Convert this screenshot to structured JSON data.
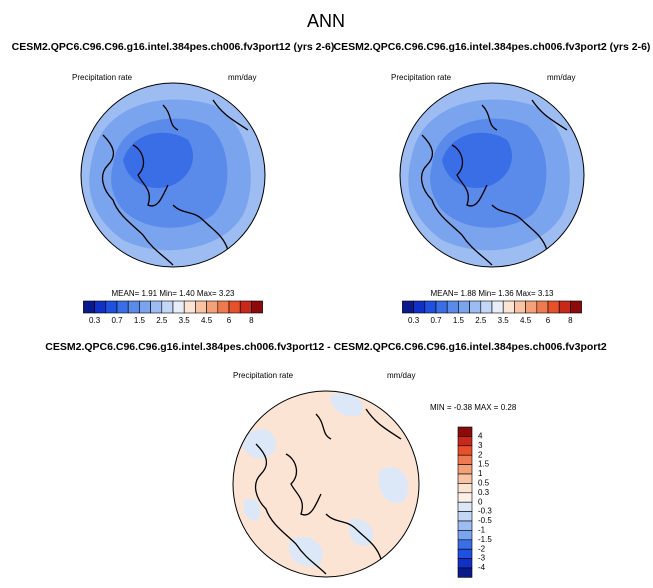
{
  "title": "ANN",
  "panels": [
    {
      "title": "CESM2.QPC6.C96.C96.g16.intel.384pes.ch006.fv3port12 (yrs 2-6)",
      "variable": "Precipitation rate",
      "units": "mm/day",
      "stats": "MEAN=  1.91  Min=  1.40  Max=  3.23",
      "levels": [
        0.3,
        0.7,
        1.5,
        2.5,
        3.5,
        4.5,
        6,
        8
      ],
      "colors": [
        "#0a1a8c",
        "#1030c8",
        "#2050e0",
        "#3a6ee6",
        "#5a8aea",
        "#7aa4ee",
        "#9cbcf2",
        "#c4d6f6",
        "#e8eef8",
        "#fbe4d4",
        "#f8c4a4",
        "#f4a078",
        "#f07a50",
        "#e8502a",
        "#c8281a",
        "#8c0a0a"
      ]
    },
    {
      "title": "CESM2.QPC6.C96.C96.g16.intel.384pes.ch006.fv3port2 (yrs 2-6)",
      "variable": "Precipitation rate",
      "units": "mm/day",
      "stats": "MEAN=  1.88  Min=  1.36  Max=  3.13",
      "levels": [
        0.3,
        0.7,
        1.5,
        2.5,
        3.5,
        4.5,
        6,
        8
      ],
      "colors": [
        "#0a1a8c",
        "#1030c8",
        "#2050e0",
        "#3a6ee6",
        "#5a8aea",
        "#7aa4ee",
        "#9cbcf2",
        "#c4d6f6",
        "#e8eef8",
        "#fbe4d4",
        "#f8c4a4",
        "#f4a078",
        "#f07a50",
        "#e8502a",
        "#c8281a",
        "#8c0a0a"
      ]
    },
    {
      "title": "CESM2.QPC6.C96.C96.g16.intel.384pes.ch006.fv3port12 - CESM2.QPC6.C96.C96.g16.intel.384pes.ch006.fv3port2",
      "variable": "Precipitation rate",
      "units": "mm/day",
      "stats": "MIN = -0.38 MAX =  0.28",
      "levels": [
        4,
        3,
        2,
        1.5,
        1,
        0.5,
        0.3,
        0,
        -0.3,
        -0.5,
        -1,
        -1.5,
        -2,
        -3,
        -4
      ],
      "colors": [
        "#8c0a0a",
        "#c8281a",
        "#e8502a",
        "#f07a50",
        "#f4a078",
        "#f8c4a4",
        "#fbe4d4",
        "#fdf0e6",
        "#dce8f8",
        "#c4d6f6",
        "#9cbcf2",
        "#7aa4ee",
        "#3a6ee6",
        "#2050e0",
        "#1030c8",
        "#0a1a8c"
      ]
    }
  ]
}
